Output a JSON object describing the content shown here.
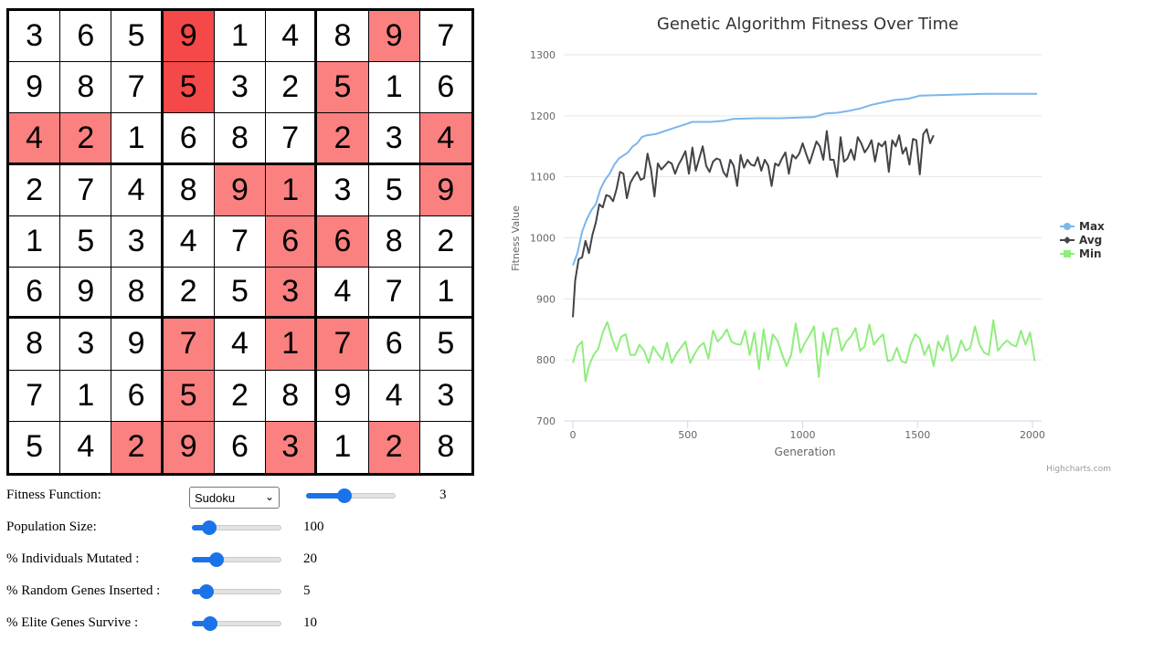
{
  "sudoku": {
    "cells": [
      [
        3,
        6,
        5,
        9,
        1,
        4,
        8,
        9,
        7
      ],
      [
        9,
        8,
        7,
        5,
        3,
        2,
        5,
        1,
        6
      ],
      [
        4,
        2,
        1,
        6,
        8,
        7,
        2,
        3,
        4
      ],
      [
        2,
        7,
        4,
        8,
        9,
        1,
        3,
        5,
        9
      ],
      [
        1,
        5,
        3,
        4,
        7,
        6,
        6,
        8,
        2
      ],
      [
        6,
        9,
        8,
        2,
        5,
        3,
        4,
        7,
        1
      ],
      [
        8,
        3,
        9,
        7,
        4,
        1,
        7,
        6,
        5
      ],
      [
        7,
        1,
        6,
        5,
        2,
        8,
        9,
        4,
        3
      ],
      [
        5,
        4,
        2,
        9,
        6,
        3,
        1,
        2,
        8
      ]
    ],
    "highlights": [
      [
        0,
        0,
        0,
        2,
        0,
        0,
        0,
        1,
        0
      ],
      [
        0,
        0,
        0,
        2,
        0,
        0,
        1,
        0,
        0
      ],
      [
        1,
        1,
        0,
        0,
        0,
        0,
        1,
        0,
        1
      ],
      [
        0,
        0,
        0,
        0,
        1,
        1,
        0,
        0,
        1
      ],
      [
        0,
        0,
        0,
        0,
        0,
        1,
        1,
        0,
        0
      ],
      [
        0,
        0,
        0,
        0,
        0,
        1,
        0,
        0,
        0
      ],
      [
        0,
        0,
        0,
        1,
        0,
        1,
        1,
        0,
        0
      ],
      [
        0,
        0,
        0,
        1,
        0,
        0,
        0,
        0,
        0
      ],
      [
        0,
        0,
        1,
        1,
        0,
        1,
        0,
        1,
        0
      ]
    ],
    "highlight_color": "#fb8080",
    "strong_highlight_color": "#f54848"
  },
  "controls": {
    "fitness_function": {
      "label": "Fitness Function:",
      "selected": "Sudoku",
      "slider_value": "3",
      "slider_fraction": 0.41
    },
    "population_size": {
      "label": "Population Size:",
      "value": "100",
      "fraction": 0.13
    },
    "mutated": {
      "label": "% Individuals Mutated :",
      "value": "20",
      "fraction": 0.23
    },
    "random_genes": {
      "label": "% Random Genes Inserted :",
      "value": "5",
      "fraction": 0.1
    },
    "elite_genes": {
      "label": "% Elite Genes Survive :",
      "value": "10",
      "fraction": 0.15
    }
  },
  "chart_data": {
    "type": "line",
    "title": "Genetic Algorithm Fitness Over Time",
    "xlabel": "Generation",
    "ylabel": "Fitness Value",
    "xlim": [
      0,
      2040
    ],
    "ylim": [
      700,
      1300
    ],
    "x_ticks": [
      "0",
      "500",
      "1000",
      "1500",
      "2000"
    ],
    "y_ticks": [
      "700",
      "800",
      "900",
      "1000",
      "1100",
      "1200",
      "1300"
    ],
    "grid": true,
    "legend": "right",
    "credits": "Highcharts.com",
    "series": [
      {
        "name": "Max",
        "color": "#7cb5ec",
        "points": [
          [
            0,
            955
          ],
          [
            20,
            975
          ],
          [
            40,
            1010
          ],
          [
            60,
            1030
          ],
          [
            80,
            1045
          ],
          [
            100,
            1055
          ],
          [
            120,
            1080
          ],
          [
            140,
            1095
          ],
          [
            160,
            1105
          ],
          [
            180,
            1120
          ],
          [
            200,
            1130
          ],
          [
            220,
            1135
          ],
          [
            240,
            1140
          ],
          [
            260,
            1150
          ],
          [
            280,
            1155
          ],
          [
            300,
            1165
          ],
          [
            320,
            1168
          ],
          [
            360,
            1170
          ],
          [
            400,
            1175
          ],
          [
            440,
            1180
          ],
          [
            480,
            1185
          ],
          [
            520,
            1190
          ],
          [
            600,
            1190
          ],
          [
            660,
            1192
          ],
          [
            700,
            1195
          ],
          [
            800,
            1196
          ],
          [
            900,
            1196
          ],
          [
            1050,
            1198
          ],
          [
            1100,
            1204
          ],
          [
            1150,
            1205
          ],
          [
            1200,
            1208
          ],
          [
            1250,
            1212
          ],
          [
            1300,
            1218
          ],
          [
            1350,
            1222
          ],
          [
            1400,
            1226
          ],
          [
            1460,
            1228
          ],
          [
            1510,
            1233
          ],
          [
            1600,
            1234
          ],
          [
            1700,
            1235
          ],
          [
            1800,
            1236
          ],
          [
            1900,
            1236
          ],
          [
            2020,
            1236
          ]
        ]
      },
      {
        "name": "Avg",
        "color": "#434348",
        "points": [
          [
            0,
            870
          ],
          [
            10,
            930
          ],
          [
            25,
            965
          ],
          [
            40,
            968
          ],
          [
            55,
            995
          ],
          [
            70,
            975
          ],
          [
            85,
            1005
          ],
          [
            100,
            1025
          ],
          [
            115,
            1055
          ],
          [
            130,
            1050
          ],
          [
            145,
            1070
          ],
          [
            160,
            1068
          ],
          [
            175,
            1060
          ],
          [
            190,
            1080
          ],
          [
            205,
            1108
          ],
          [
            220,
            1105
          ],
          [
            235,
            1065
          ],
          [
            250,
            1090
          ],
          [
            265,
            1100
          ],
          [
            280,
            1108
          ],
          [
            295,
            1095
          ],
          [
            310,
            1098
          ],
          [
            325,
            1138
          ],
          [
            340,
            1112
          ],
          [
            355,
            1068
          ],
          [
            370,
            1122
          ],
          [
            385,
            1112
          ],
          [
            400,
            1118
          ],
          [
            415,
            1125
          ],
          [
            430,
            1122
          ],
          [
            445,
            1105
          ],
          [
            460,
            1120
          ],
          [
            475,
            1130
          ],
          [
            490,
            1142
          ],
          [
            505,
            1105
          ],
          [
            520,
            1148
          ],
          [
            535,
            1110
          ],
          [
            550,
            1130
          ],
          [
            565,
            1150
          ],
          [
            580,
            1118
          ],
          [
            595,
            1108
          ],
          [
            610,
            1125
          ],
          [
            625,
            1130
          ],
          [
            640,
            1128
          ],
          [
            655,
            1108
          ],
          [
            670,
            1100
          ],
          [
            685,
            1128
          ],
          [
            700,
            1118
          ],
          [
            715,
            1085
          ],
          [
            730,
            1136
          ],
          [
            745,
            1115
          ],
          [
            760,
            1128
          ],
          [
            775,
            1120
          ],
          [
            790,
            1118
          ],
          [
            805,
            1132
          ],
          [
            820,
            1110
          ],
          [
            835,
            1128
          ],
          [
            850,
            1118
          ],
          [
            865,
            1085
          ],
          [
            880,
            1122
          ],
          [
            895,
            1118
          ],
          [
            910,
            1130
          ],
          [
            925,
            1140
          ],
          [
            940,
            1105
          ],
          [
            955,
            1136
          ],
          [
            970,
            1130
          ],
          [
            985,
            1138
          ],
          [
            1000,
            1155
          ],
          [
            1015,
            1138
          ],
          [
            1030,
            1122
          ],
          [
            1045,
            1140
          ],
          [
            1060,
            1158
          ],
          [
            1075,
            1150
          ],
          [
            1090,
            1128
          ],
          [
            1105,
            1175
          ],
          [
            1120,
            1128
          ],
          [
            1135,
            1128
          ],
          [
            1150,
            1100
          ],
          [
            1165,
            1165
          ],
          [
            1180,
            1125
          ],
          [
            1195,
            1130
          ],
          [
            1210,
            1145
          ],
          [
            1225,
            1128
          ],
          [
            1240,
            1165
          ],
          [
            1255,
            1155
          ],
          [
            1270,
            1140
          ],
          [
            1285,
            1148
          ],
          [
            1300,
            1160
          ],
          [
            1315,
            1125
          ],
          [
            1330,
            1155
          ],
          [
            1345,
            1150
          ],
          [
            1360,
            1158
          ],
          [
            1375,
            1108
          ],
          [
            1390,
            1160
          ],
          [
            1405,
            1150
          ],
          [
            1420,
            1168
          ],
          [
            1435,
            1138
          ],
          [
            1450,
            1148
          ],
          [
            1465,
            1120
          ],
          [
            1480,
            1162
          ],
          [
            1495,
            1160
          ],
          [
            1510,
            1104
          ],
          [
            1525,
            1170
          ],
          [
            1540,
            1178
          ],
          [
            1555,
            1155
          ],
          [
            1570,
            1168
          ]
        ]
      },
      {
        "name": "Min",
        "color": "#90ed7d",
        "points": [
          [
            0,
            795
          ],
          [
            20,
            822
          ],
          [
            40,
            830
          ],
          [
            55,
            765
          ],
          [
            70,
            790
          ],
          [
            90,
            808
          ],
          [
            110,
            818
          ],
          [
            130,
            845
          ],
          [
            150,
            862
          ],
          [
            170,
            835
          ],
          [
            190,
            815
          ],
          [
            210,
            838
          ],
          [
            230,
            842
          ],
          [
            250,
            808
          ],
          [
            270,
            808
          ],
          [
            290,
            825
          ],
          [
            310,
            815
          ],
          [
            330,
            795
          ],
          [
            350,
            822
          ],
          [
            370,
            810
          ],
          [
            390,
            800
          ],
          [
            410,
            828
          ],
          [
            430,
            795
          ],
          [
            450,
            810
          ],
          [
            470,
            820
          ],
          [
            490,
            830
          ],
          [
            510,
            795
          ],
          [
            530,
            810
          ],
          [
            550,
            822
          ],
          [
            570,
            828
          ],
          [
            590,
            802
          ],
          [
            610,
            848
          ],
          [
            630,
            830
          ],
          [
            650,
            838
          ],
          [
            670,
            850
          ],
          [
            690,
            830
          ],
          [
            710,
            826
          ],
          [
            730,
            825
          ],
          [
            750,
            848
          ],
          [
            770,
            808
          ],
          [
            790,
            845
          ],
          [
            810,
            785
          ],
          [
            830,
            850
          ],
          [
            850,
            800
          ],
          [
            870,
            842
          ],
          [
            890,
            832
          ],
          [
            910,
            810
          ],
          [
            930,
            790
          ],
          [
            950,
            808
          ],
          [
            970,
            860
          ],
          [
            990,
            812
          ],
          [
            1010,
            828
          ],
          [
            1030,
            840
          ],
          [
            1050,
            855
          ],
          [
            1070,
            772
          ],
          [
            1090,
            845
          ],
          [
            1110,
            808
          ],
          [
            1130,
            850
          ],
          [
            1150,
            852
          ],
          [
            1170,
            815
          ],
          [
            1190,
            830
          ],
          [
            1210,
            838
          ],
          [
            1230,
            852
          ],
          [
            1250,
            815
          ],
          [
            1270,
            822
          ],
          [
            1290,
            858
          ],
          [
            1310,
            825
          ],
          [
            1330,
            835
          ],
          [
            1350,
            842
          ],
          [
            1370,
            798
          ],
          [
            1390,
            800
          ],
          [
            1410,
            820
          ],
          [
            1430,
            798
          ],
          [
            1450,
            795
          ],
          [
            1470,
            825
          ],
          [
            1490,
            842
          ],
          [
            1510,
            835
          ],
          [
            1530,
            808
          ],
          [
            1550,
            825
          ],
          [
            1570,
            790
          ],
          [
            1590,
            830
          ],
          [
            1610,
            815
          ],
          [
            1630,
            840
          ],
          [
            1650,
            798
          ],
          [
            1670,
            808
          ],
          [
            1690,
            832
          ],
          [
            1710,
            815
          ],
          [
            1730,
            820
          ],
          [
            1750,
            855
          ],
          [
            1770,
            825
          ],
          [
            1790,
            812
          ],
          [
            1810,
            808
          ],
          [
            1830,
            865
          ],
          [
            1850,
            815
          ],
          [
            1870,
            825
          ],
          [
            1890,
            832
          ],
          [
            1910,
            825
          ],
          [
            1930,
            822
          ],
          [
            1950,
            848
          ],
          [
            1970,
            825
          ],
          [
            1990,
            845
          ],
          [
            2010,
            798
          ]
        ]
      }
    ]
  }
}
